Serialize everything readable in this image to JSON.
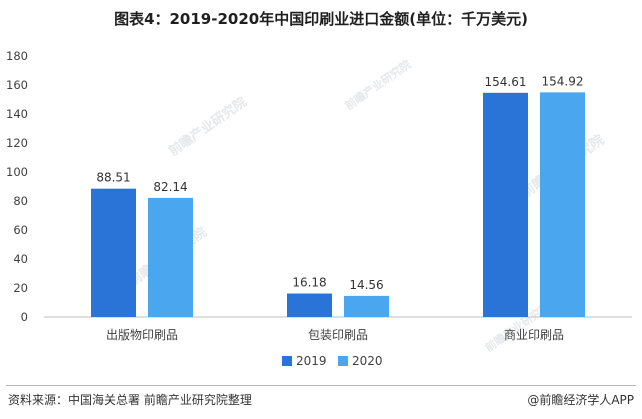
{
  "header": {
    "title": "图表4：2019-2020年中国印刷业进口金额(单位：千万美元)"
  },
  "footer": {
    "source": "资料来源：中国海关总署 前瞻产业研究院整理",
    "brand": "@前瞻经济学人APP"
  },
  "watermark": {
    "text": "前瞻产业研究院"
  },
  "chart_data": {
    "type": "bar",
    "title": "图表4：2019-2020年中国印刷业进口金额(单位：千万美元)",
    "categories": [
      "出版物印刷品",
      "包装印刷品",
      "商业印刷品"
    ],
    "series": [
      {
        "name": "2019",
        "values": [
          88.51,
          16.18,
          154.61
        ],
        "color": "#2a74d8"
      },
      {
        "name": "2020",
        "values": [
          82.14,
          14.56,
          154.92
        ],
        "color": "#4ba6f0"
      }
    ],
    "y_ticks": [
      0,
      20,
      40,
      60,
      80,
      100,
      120,
      140,
      160,
      180
    ],
    "ylim": [
      0,
      180
    ],
    "grid": false,
    "legend_position": "bottom-center",
    "data_labels": [
      "88.51",
      "82.14",
      "16.18",
      "14.56",
      "154.61",
      "154.92"
    ]
  }
}
